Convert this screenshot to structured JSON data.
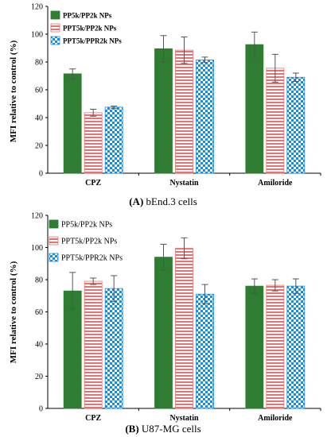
{
  "chart_data": [
    {
      "panel": "A",
      "type": "bar",
      "caption_letter": "A",
      "caption_text": "bEnd.3 cells",
      "ylabel": "MFI relative to control (%)",
      "ylim": [
        0,
        120
      ],
      "yticks": [
        0,
        20,
        40,
        60,
        80,
        100,
        120
      ],
      "categories": [
        "CPZ",
        "Nystatin",
        "Amiloride"
      ],
      "legend_position": "top-left",
      "grid": false,
      "series": [
        {
          "name": "PP5k/PP2k NPs",
          "color": "#2e7d32",
          "pattern": "solid",
          "values": [
            71.5,
            89.5,
            92.5
          ],
          "errors": [
            3.5,
            9.5,
            9.0
          ]
        },
        {
          "name": "PPT5k/PP2k NPs",
          "color": "#e57373",
          "pattern": "hlines",
          "values": [
            43.5,
            88.5,
            75.5
          ],
          "errors": [
            2.5,
            9.5,
            10.0
          ]
        },
        {
          "name": "PPT5k/PPR2k NPs",
          "color": "#1e88e5",
          "pattern": "checker",
          "values": [
            47.5,
            81.5,
            69.0
          ],
          "errors": [
            0.8,
            2.0,
            3.0
          ]
        }
      ]
    },
    {
      "panel": "B",
      "type": "bar",
      "caption_letter": "B",
      "caption_text": "U87-MG cells",
      "ylabel": "MFI relative to control (%)",
      "ylim": [
        0,
        120
      ],
      "yticks": [
        0,
        20,
        40,
        60,
        80,
        100,
        120
      ],
      "categories": [
        "CPZ",
        "Nystatin",
        "Amiloride"
      ],
      "legend_position": "top-left",
      "grid": false,
      "series": [
        {
          "name": "PP5k/PP2k NPs",
          "color": "#2e7d32",
          "pattern": "solid",
          "values": [
            73.0,
            94.0,
            76.0
          ],
          "errors": [
            11.5,
            8.0,
            4.5
          ]
        },
        {
          "name": "PPT5k/PP2k NPs",
          "color": "#e57373",
          "pattern": "hlines",
          "values": [
            79.0,
            99.5,
            76.5
          ],
          "errors": [
            2.0,
            6.5,
            3.5
          ]
        },
        {
          "name": "PPT5k/PPR2k NPs",
          "color": "#1e88e5",
          "pattern": "checker",
          "values": [
            74.5,
            71.0,
            76.0
          ],
          "errors": [
            8.0,
            6.0,
            4.5
          ]
        }
      ]
    }
  ]
}
